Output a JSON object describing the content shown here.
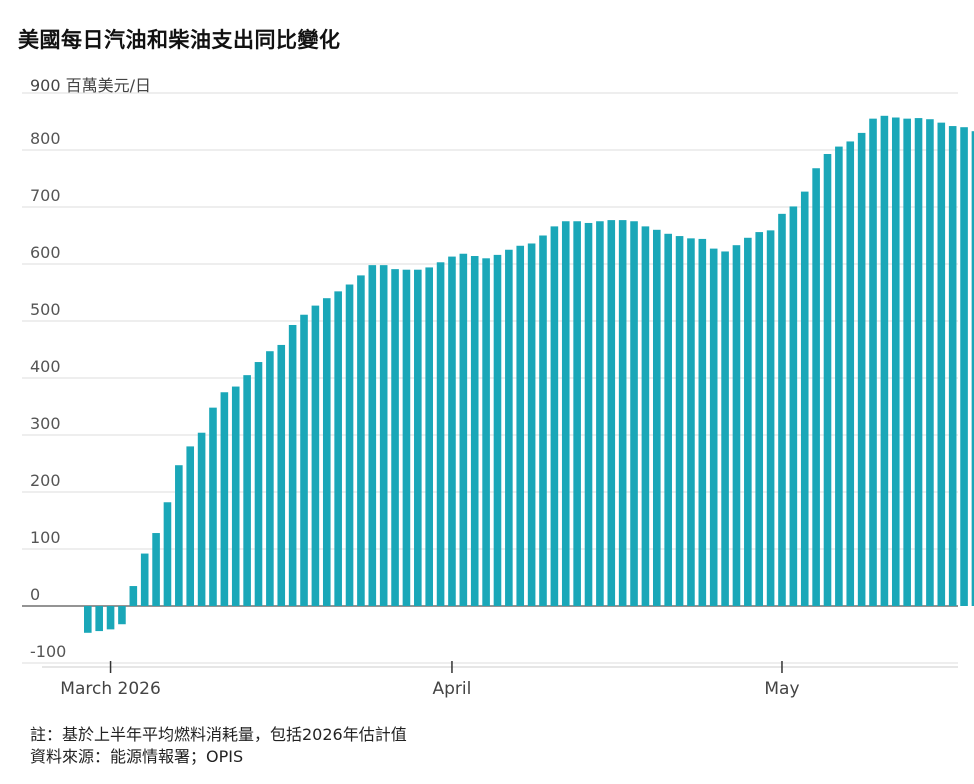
{
  "chart_data": {
    "type": "bar",
    "title": "美國每日汽油和柴油支出同比變化",
    "ylabel": "百萬美元/日",
    "ylim": [
      -100,
      900
    ],
    "yticks": [
      -100,
      0,
      100,
      200,
      300,
      400,
      500,
      600,
      700,
      800,
      900
    ],
    "grid": true,
    "bar_color": "#1aa7b8",
    "x_tick_labels": [
      {
        "label": "March 2026",
        "index": 2
      },
      {
        "label": "April",
        "index": 32
      },
      {
        "label": "May",
        "index": 61
      }
    ],
    "values": [
      -47,
      -44,
      -41,
      -32,
      35,
      92,
      128,
      182,
      247,
      280,
      304,
      348,
      375,
      385,
      405,
      428,
      447,
      458,
      493,
      511,
      527,
      540,
      552,
      564,
      580,
      598,
      598,
      591,
      590,
      590,
      594,
      603,
      613,
      618,
      614,
      610,
      616,
      625,
      632,
      636,
      650,
      666,
      675,
      675,
      672,
      675,
      677,
      677,
      675,
      666,
      660,
      653,
      649,
      645,
      644,
      627,
      622,
      633,
      646,
      656,
      659,
      688,
      701,
      727,
      768,
      793,
      806,
      815,
      830,
      855,
      860,
      857,
      855,
      856,
      854,
      848,
      842,
      840,
      833
    ]
  },
  "footer": {
    "note": "註：基於上半年平均燃料消耗量，包括2026年估計值",
    "source": "資料來源：能源情報署；OPIS"
  }
}
